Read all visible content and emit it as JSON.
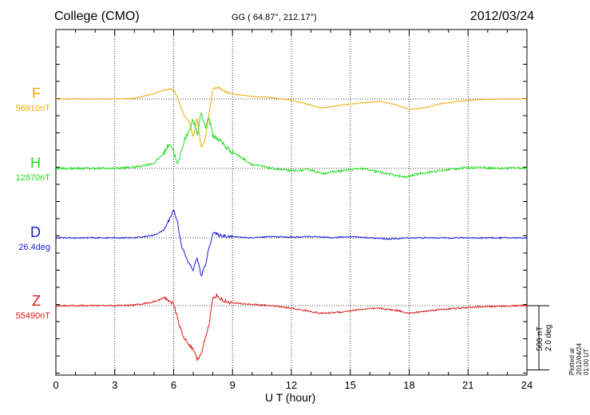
{
  "chart_data": {
    "type": "line",
    "title": "College (CMO)",
    "coordinates": "GG ( 64.87°, 212.17°)",
    "date": "2012/03/24",
    "xlabel": "U T (hour)",
    "xlim": [
      0,
      24
    ],
    "xticks": [
      "0",
      "3",
      "6",
      "9",
      "12",
      "15",
      "18",
      "21",
      "24"
    ],
    "grid": true,
    "scale_bar": {
      "line1": "500 nT",
      "line2": "2.0 deg"
    },
    "plotted_note": "Plotted at 2012/04/24 01:00 UT",
    "series": [
      {
        "name": "F",
        "baseline_label": "56910nT",
        "color": "#f0a800",
        "x": [
          0,
          1,
          2,
          3,
          4,
          5,
          5.5,
          5.8,
          6.0,
          6.2,
          6.5,
          6.8,
          7.0,
          7.2,
          7.4,
          7.6,
          7.8,
          8.0,
          8.3,
          8.7,
          9.2,
          10,
          11,
          12,
          12.8,
          13.5,
          14.5,
          15.5,
          16.5,
          17.2,
          18,
          18.8,
          19.5,
          20.5,
          21.5,
          22.5,
          23.5,
          24
        ],
        "y": [
          0,
          0,
          0,
          0,
          5,
          40,
          70,
          80,
          70,
          10,
          -120,
          -180,
          -300,
          -150,
          -380,
          -320,
          -120,
          80,
          90,
          50,
          35,
          20,
          10,
          -10,
          -40,
          -70,
          -50,
          -30,
          -20,
          -40,
          -80,
          -70,
          -40,
          -20,
          -5,
          0,
          0,
          0
        ]
      },
      {
        "name": "H",
        "baseline_label": "12870nT",
        "color": "#22dd22",
        "x": [
          0,
          1,
          2,
          3,
          4,
          5,
          5.5,
          5.8,
          6.0,
          6.2,
          6.5,
          6.8,
          7.0,
          7.2,
          7.4,
          7.6,
          7.8,
          8.0,
          8.3,
          8.7,
          9.2,
          9.6,
          10,
          11,
          12,
          13,
          13.5,
          14.5,
          15.5,
          16.5,
          17.2,
          17.8,
          18.5,
          19.5,
          20.5,
          21.5,
          22.5,
          23.5,
          24
        ],
        "y": [
          0,
          0,
          0,
          0,
          10,
          40,
          120,
          200,
          130,
          20,
          200,
          300,
          380,
          250,
          440,
          320,
          400,
          250,
          230,
          160,
          110,
          70,
          30,
          0,
          -20,
          -10,
          -40,
          -20,
          0,
          -30,
          -50,
          -70,
          -40,
          -20,
          0,
          10,
          0,
          5,
          0
        ],
        "noise": 18
      },
      {
        "name": "D",
        "baseline_label": "26.4deg",
        "color": "#1a1ae0",
        "x": [
          0,
          1,
          2,
          3,
          4,
          5,
          5.5,
          5.8,
          6.0,
          6.2,
          6.4,
          6.7,
          7.0,
          7.2,
          7.4,
          7.6,
          7.8,
          8.0,
          8.3,
          9,
          10,
          11,
          12,
          13,
          14,
          15,
          16,
          17,
          18,
          19,
          20,
          21,
          22,
          23,
          24
        ],
        "y": [
          0,
          0,
          0,
          0,
          0,
          20,
          60,
          150,
          220,
          120,
          -60,
          -180,
          -250,
          -150,
          -300,
          -220,
          -80,
          40,
          20,
          10,
          0,
          10,
          5,
          10,
          0,
          10,
          0,
          -10,
          0,
          0,
          0,
          0,
          0,
          0,
          0
        ],
        "noise": 10
      },
      {
        "name": "Z",
        "baseline_label": "55490nT",
        "color": "#dd1a1a",
        "x": [
          0,
          1,
          2,
          3,
          4,
          5,
          5.5,
          5.8,
          6.0,
          6.2,
          6.5,
          6.8,
          7.0,
          7.2,
          7.4,
          7.6,
          7.8,
          8.0,
          8.2,
          8.5,
          9,
          10,
          11,
          12,
          12.8,
          13.5,
          14.5,
          15.5,
          16.5,
          17.5,
          18,
          18.5,
          19.5,
          20.5,
          21.5,
          22.5,
          23.5,
          24
        ],
        "y": [
          0,
          0,
          0,
          0,
          5,
          30,
          60,
          40,
          10,
          -100,
          -250,
          -300,
          -350,
          -420,
          -380,
          -250,
          -150,
          60,
          80,
          40,
          20,
          10,
          0,
          -20,
          -40,
          -60,
          -50,
          -30,
          -20,
          -40,
          -60,
          -50,
          -30,
          -20,
          -10,
          -5,
          0,
          0
        ],
        "noise": 12
      }
    ]
  }
}
